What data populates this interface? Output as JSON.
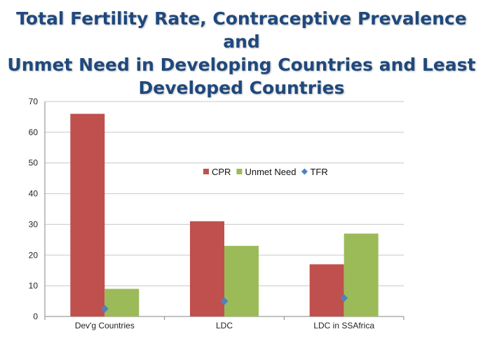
{
  "slide": {
    "title_lines": [
      "Total Fertility Rate, Contraceptive Prevalence and",
      "Unmet Need in Developing Countries and Least",
      "Developed Countries"
    ]
  },
  "chart_data": {
    "type": "bar",
    "title": "Total Fertility Rate, Contraceptive Prevalence and Unmet Need in Developing Countries and Least Developed Countries",
    "categories": [
      "Dev'g Countries",
      "LDC",
      "LDC in SSAfrica"
    ],
    "series": [
      {
        "name": "CPR",
        "kind": "bar",
        "color": "#c0504d",
        "values": [
          66,
          31,
          17
        ]
      },
      {
        "name": "Unmet Need",
        "kind": "bar",
        "color": "#9bbb59",
        "values": [
          9,
          23,
          27
        ]
      },
      {
        "name": "TFR",
        "kind": "marker",
        "color": "#4f81bd",
        "values": [
          2.5,
          5,
          6
        ]
      }
    ],
    "xlabel": "",
    "ylabel": "",
    "ylim": [
      0,
      70
    ],
    "yticks": [
      0,
      10,
      20,
      30,
      40,
      50,
      60,
      70
    ],
    "grid": true,
    "legend_position": "center"
  }
}
